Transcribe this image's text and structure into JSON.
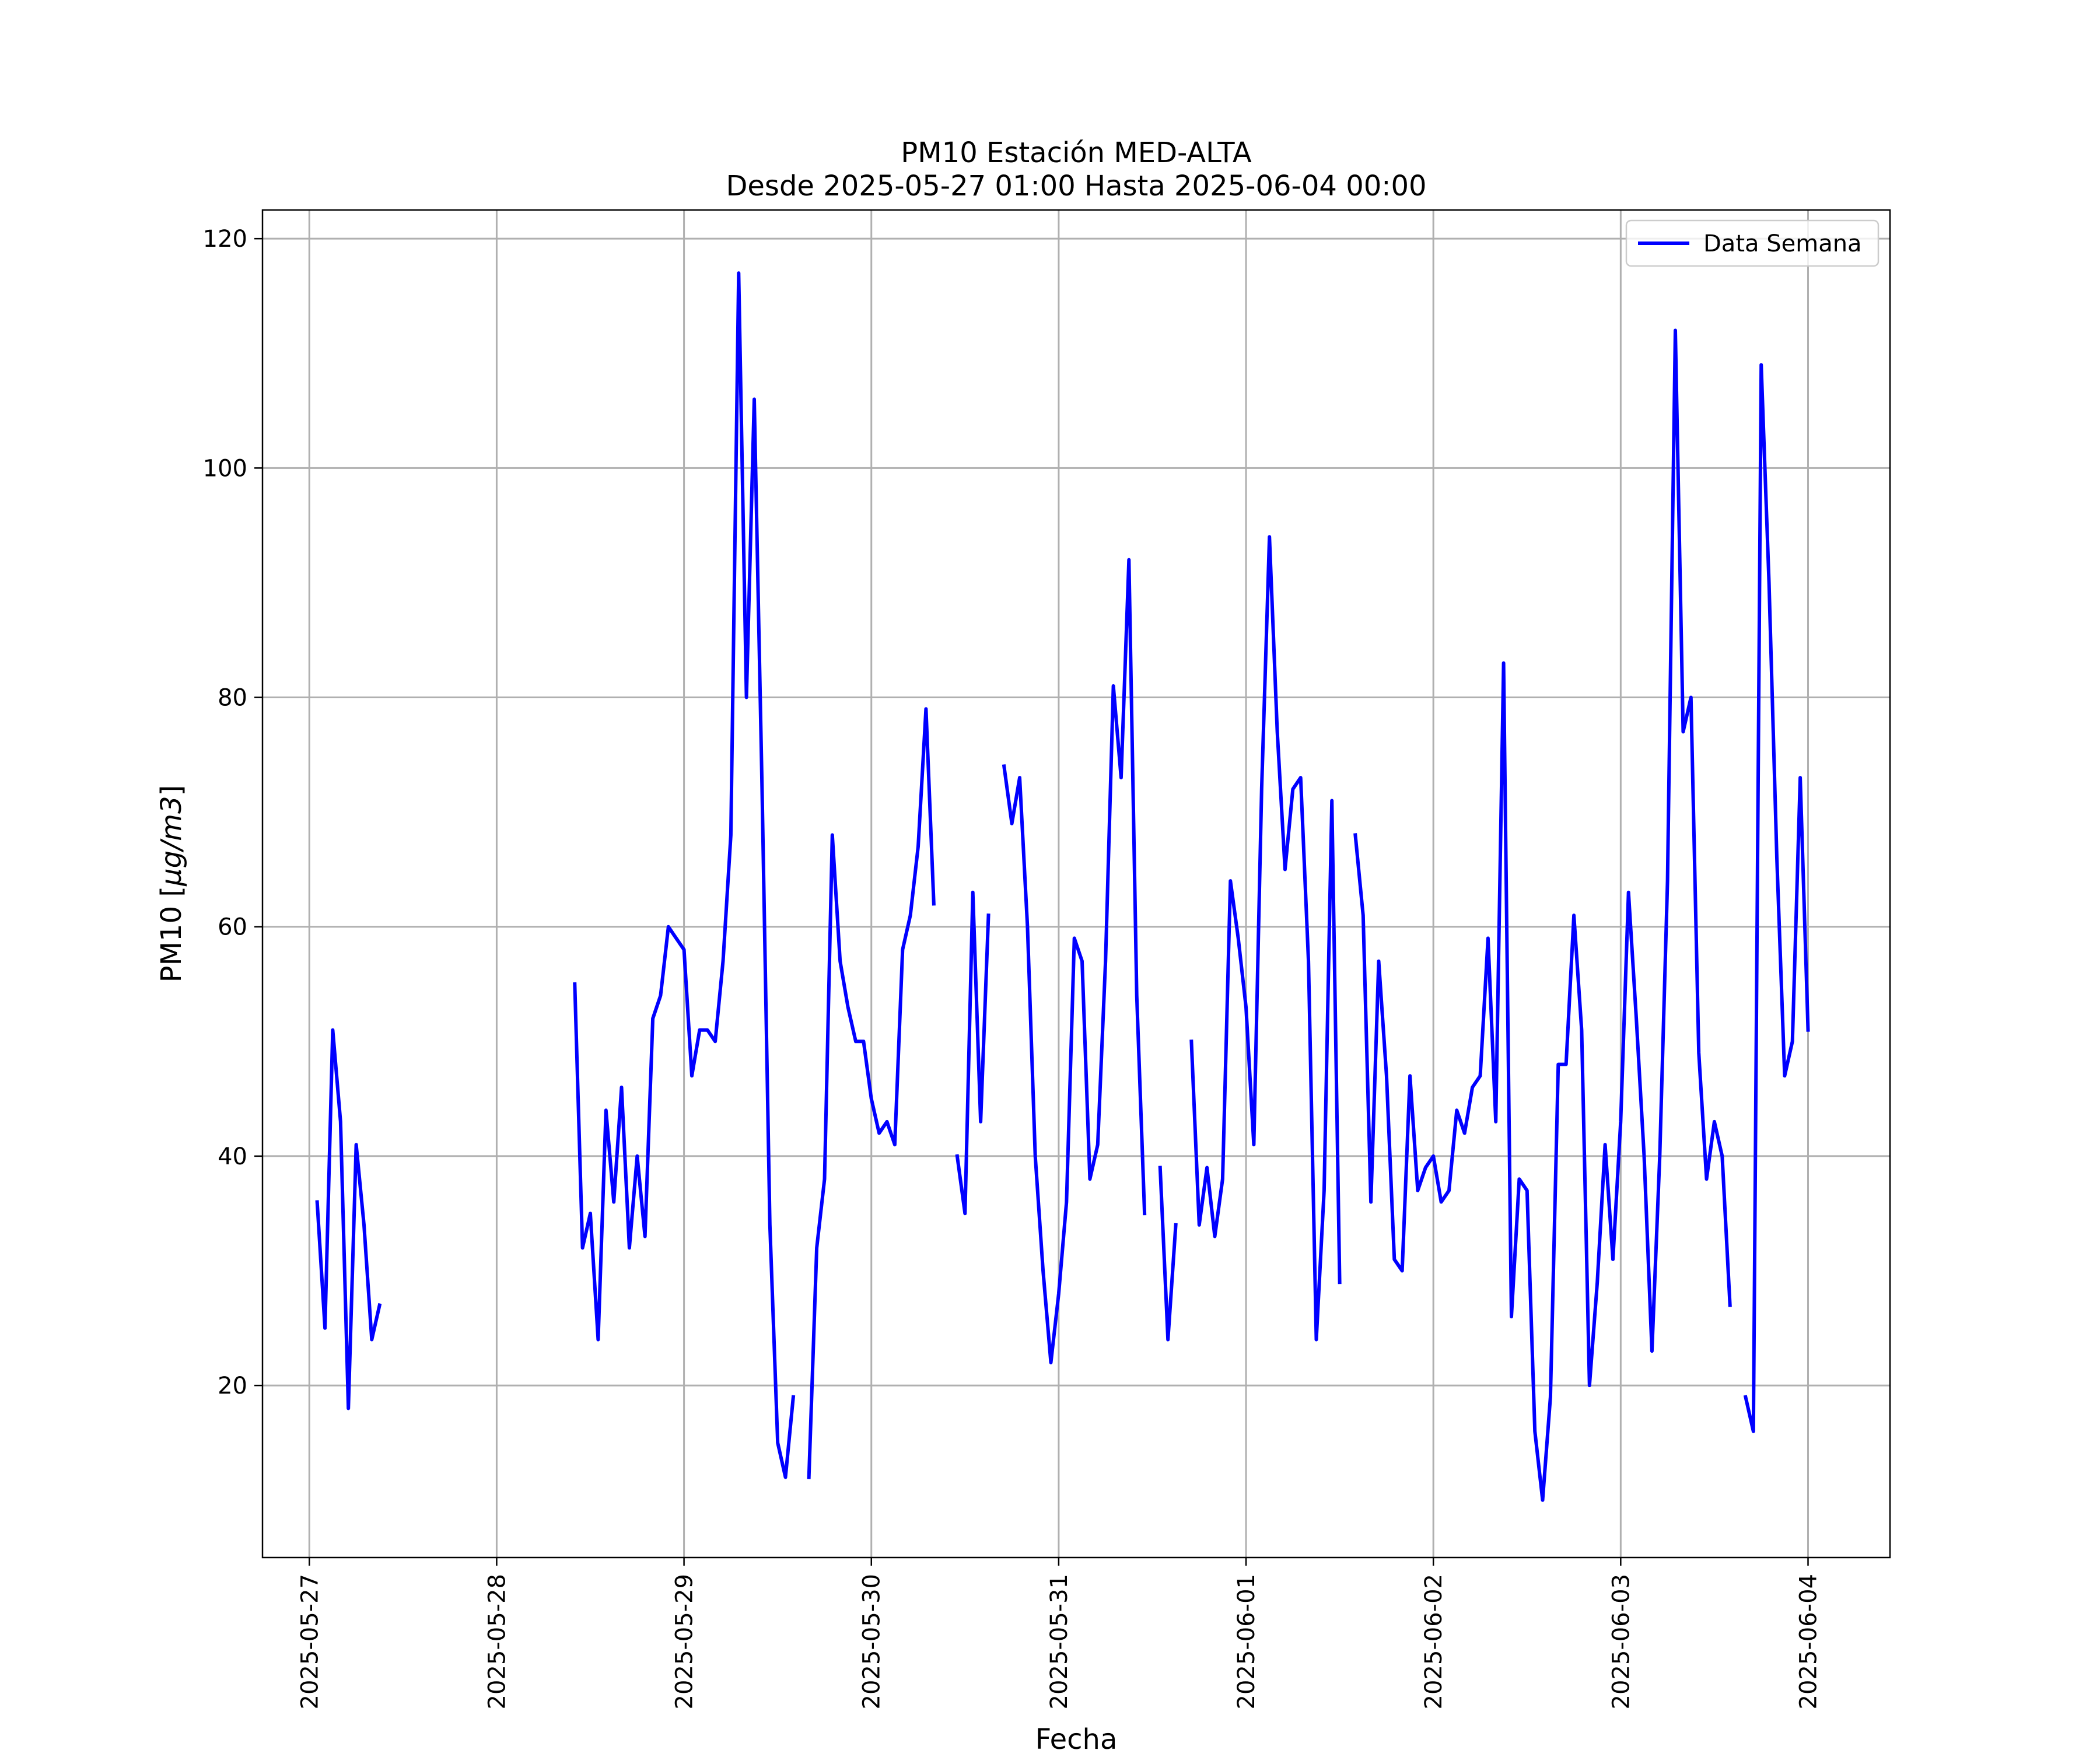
{
  "chart_data": {
    "type": "line",
    "title": "PM10 Estación MED-ALTA",
    "subtitle": "Desde 2025-05-27 01:00 Hasta 2025-06-04 00:00",
    "xlabel": "Fecha",
    "ylabel_prefix": "PM10 [",
    "ylabel_unit": "μg/m3",
    "ylabel_suffix": "]",
    "xlim": [
      "2025-05-26 18:00",
      "2025-06-04 10:30"
    ],
    "ylim": [
      5,
      122.5
    ],
    "x_ticks": [
      "2025-05-27",
      "2025-05-28",
      "2025-05-29",
      "2025-05-30",
      "2025-05-31",
      "2025-06-01",
      "2025-06-02",
      "2025-06-03",
      "2025-06-04"
    ],
    "y_ticks": [
      20,
      40,
      60,
      80,
      100,
      120
    ],
    "grid": true,
    "legend": {
      "position": "top-right"
    },
    "colors": {
      "line": "#0000ff"
    },
    "series": [
      {
        "name": "Data Semana",
        "points": [
          [
            "2025-05-27 01:00",
            36
          ],
          [
            "2025-05-27 02:00",
            25
          ],
          [
            "2025-05-27 03:00",
            51
          ],
          [
            "2025-05-27 04:00",
            43
          ],
          [
            "2025-05-27 05:00",
            18
          ],
          [
            "2025-05-27 06:00",
            41
          ],
          [
            "2025-05-27 07:00",
            34
          ],
          [
            "2025-05-27 08:00",
            24
          ],
          [
            "2025-05-27 09:00",
            27
          ],
          [
            "2025-05-27 10:00",
            null
          ],
          [
            "2025-05-28 10:00",
            55
          ],
          [
            "2025-05-28 11:00",
            32
          ],
          [
            "2025-05-28 12:00",
            35
          ],
          [
            "2025-05-28 13:00",
            24
          ],
          [
            "2025-05-28 14:00",
            44
          ],
          [
            "2025-05-28 15:00",
            36
          ],
          [
            "2025-05-28 16:00",
            46
          ],
          [
            "2025-05-28 17:00",
            32
          ],
          [
            "2025-05-28 18:00",
            40
          ],
          [
            "2025-05-28 19:00",
            33
          ],
          [
            "2025-05-28 20:00",
            52
          ],
          [
            "2025-05-28 21:00",
            54
          ],
          [
            "2025-05-28 22:00",
            60
          ],
          [
            "2025-05-28 23:00",
            59
          ],
          [
            "2025-05-29 00:00",
            58
          ],
          [
            "2025-05-29 01:00",
            47
          ],
          [
            "2025-05-29 02:00",
            51
          ],
          [
            "2025-05-29 03:00",
            51
          ],
          [
            "2025-05-29 04:00",
            50
          ],
          [
            "2025-05-29 05:00",
            57
          ],
          [
            "2025-05-29 06:00",
            68
          ],
          [
            "2025-05-29 07:00",
            117
          ],
          [
            "2025-05-29 08:00",
            80
          ],
          [
            "2025-05-29 09:00",
            106
          ],
          [
            "2025-05-29 10:00",
            72
          ],
          [
            "2025-05-29 11:00",
            34
          ],
          [
            "2025-05-29 12:00",
            15
          ],
          [
            "2025-05-29 13:00",
            12
          ],
          [
            "2025-05-29 14:00",
            19
          ],
          [
            "2025-05-29 15:00",
            null
          ],
          [
            "2025-05-29 16:00",
            12
          ],
          [
            "2025-05-29 17:00",
            32
          ],
          [
            "2025-05-29 18:00",
            38
          ],
          [
            "2025-05-29 19:00",
            68
          ],
          [
            "2025-05-29 20:00",
            57
          ],
          [
            "2025-05-29 21:00",
            53
          ],
          [
            "2025-05-29 22:00",
            50
          ],
          [
            "2025-05-29 23:00",
            50
          ],
          [
            "2025-05-30 00:00",
            45
          ],
          [
            "2025-05-30 01:00",
            42
          ],
          [
            "2025-05-30 02:00",
            43
          ],
          [
            "2025-05-30 03:00",
            41
          ],
          [
            "2025-05-30 04:00",
            58
          ],
          [
            "2025-05-30 05:00",
            61
          ],
          [
            "2025-05-30 06:00",
            67
          ],
          [
            "2025-05-30 07:00",
            79
          ],
          [
            "2025-05-30 08:00",
            62
          ],
          [
            "2025-05-30 09:00",
            null
          ],
          [
            "2025-05-30 11:00",
            40
          ],
          [
            "2025-05-30 12:00",
            35
          ],
          [
            "2025-05-30 13:00",
            63
          ],
          [
            "2025-05-30 14:00",
            43
          ],
          [
            "2025-05-30 15:00",
            61
          ],
          [
            "2025-05-30 16:00",
            null
          ],
          [
            "2025-05-30 17:00",
            74
          ],
          [
            "2025-05-30 18:00",
            69
          ],
          [
            "2025-05-30 19:00",
            73
          ],
          [
            "2025-05-30 20:00",
            60
          ],
          [
            "2025-05-30 21:00",
            40
          ],
          [
            "2025-05-30 22:00",
            30
          ],
          [
            "2025-05-30 23:00",
            22
          ],
          [
            "2025-05-31 00:00",
            28
          ],
          [
            "2025-05-31 01:00",
            36
          ],
          [
            "2025-05-31 02:00",
            59
          ],
          [
            "2025-05-31 03:00",
            57
          ],
          [
            "2025-05-31 04:00",
            38
          ],
          [
            "2025-05-31 05:00",
            41
          ],
          [
            "2025-05-31 06:00",
            57
          ],
          [
            "2025-05-31 07:00",
            81
          ],
          [
            "2025-05-31 08:00",
            73
          ],
          [
            "2025-05-31 09:00",
            92
          ],
          [
            "2025-05-31 10:00",
            54
          ],
          [
            "2025-05-31 11:00",
            35
          ],
          [
            "2025-05-31 12:00",
            null
          ],
          [
            "2025-05-31 13:00",
            39
          ],
          [
            "2025-05-31 14:00",
            24
          ],
          [
            "2025-05-31 15:00",
            34
          ],
          [
            "2025-05-31 16:00",
            null
          ],
          [
            "2025-05-31 17:00",
            50
          ],
          [
            "2025-05-31 18:00",
            34
          ],
          [
            "2025-05-31 19:00",
            39
          ],
          [
            "2025-05-31 20:00",
            33
          ],
          [
            "2025-05-31 21:00",
            38
          ],
          [
            "2025-05-31 22:00",
            64
          ],
          [
            "2025-05-31 23:00",
            59
          ],
          [
            "2025-06-01 00:00",
            53
          ],
          [
            "2025-06-01 01:00",
            41
          ],
          [
            "2025-06-01 02:00",
            72
          ],
          [
            "2025-06-01 03:00",
            94
          ],
          [
            "2025-06-01 04:00",
            77
          ],
          [
            "2025-06-01 05:00",
            65
          ],
          [
            "2025-06-01 06:00",
            72
          ],
          [
            "2025-06-01 07:00",
            73
          ],
          [
            "2025-06-01 08:00",
            57
          ],
          [
            "2025-06-01 09:00",
            24
          ],
          [
            "2025-06-01 10:00",
            37
          ],
          [
            "2025-06-01 11:00",
            71
          ],
          [
            "2025-06-01 12:00",
            29
          ],
          [
            "2025-06-01 13:00",
            null
          ],
          [
            "2025-06-01 14:00",
            68
          ],
          [
            "2025-06-01 15:00",
            61
          ],
          [
            "2025-06-01 16:00",
            36
          ],
          [
            "2025-06-01 17:00",
            57
          ],
          [
            "2025-06-01 18:00",
            47
          ],
          [
            "2025-06-01 19:00",
            31
          ],
          [
            "2025-06-01 20:00",
            30
          ],
          [
            "2025-06-01 21:00",
            47
          ],
          [
            "2025-06-01 22:00",
            37
          ],
          [
            "2025-06-01 23:00",
            39
          ],
          [
            "2025-06-02 00:00",
            40
          ],
          [
            "2025-06-02 01:00",
            36
          ],
          [
            "2025-06-02 02:00",
            37
          ],
          [
            "2025-06-02 03:00",
            44
          ],
          [
            "2025-06-02 04:00",
            42
          ],
          [
            "2025-06-02 05:00",
            46
          ],
          [
            "2025-06-02 06:00",
            47
          ],
          [
            "2025-06-02 07:00",
            59
          ],
          [
            "2025-06-02 08:00",
            43
          ],
          [
            "2025-06-02 09:00",
            83
          ],
          [
            "2025-06-02 10:00",
            26
          ],
          [
            "2025-06-02 11:00",
            38
          ],
          [
            "2025-06-02 12:00",
            37
          ],
          [
            "2025-06-02 13:00",
            16
          ],
          [
            "2025-06-02 14:00",
            10
          ],
          [
            "2025-06-02 15:00",
            19
          ],
          [
            "2025-06-02 16:00",
            48
          ],
          [
            "2025-06-02 17:00",
            48
          ],
          [
            "2025-06-02 18:00",
            61
          ],
          [
            "2025-06-02 19:00",
            51
          ],
          [
            "2025-06-02 20:00",
            20
          ],
          [
            "2025-06-02 21:00",
            29
          ],
          [
            "2025-06-02 22:00",
            41
          ],
          [
            "2025-06-02 23:00",
            31
          ],
          [
            "2025-06-03 00:00",
            43
          ],
          [
            "2025-06-03 01:00",
            63
          ],
          [
            "2025-06-03 02:00",
            52
          ],
          [
            "2025-06-03 03:00",
            40
          ],
          [
            "2025-06-03 04:00",
            23
          ],
          [
            "2025-06-03 05:00",
            40
          ],
          [
            "2025-06-03 06:00",
            64
          ],
          [
            "2025-06-03 07:00",
            112
          ],
          [
            "2025-06-03 08:00",
            77
          ],
          [
            "2025-06-03 09:00",
            80
          ],
          [
            "2025-06-03 10:00",
            49
          ],
          [
            "2025-06-03 11:00",
            38
          ],
          [
            "2025-06-03 12:00",
            43
          ],
          [
            "2025-06-03 13:00",
            40
          ],
          [
            "2025-06-03 14:00",
            27
          ],
          [
            "2025-06-03 15:00",
            null
          ],
          [
            "2025-06-03 16:00",
            19
          ],
          [
            "2025-06-03 17:00",
            16
          ],
          [
            "2025-06-03 18:00",
            109
          ],
          [
            "2025-06-03 19:00",
            90
          ],
          [
            "2025-06-03 20:00",
            66
          ],
          [
            "2025-06-03 21:00",
            47
          ],
          [
            "2025-06-03 22:00",
            50
          ],
          [
            "2025-06-03 23:00",
            73
          ],
          [
            "2025-06-04 00:00",
            51
          ]
        ]
      }
    ]
  }
}
